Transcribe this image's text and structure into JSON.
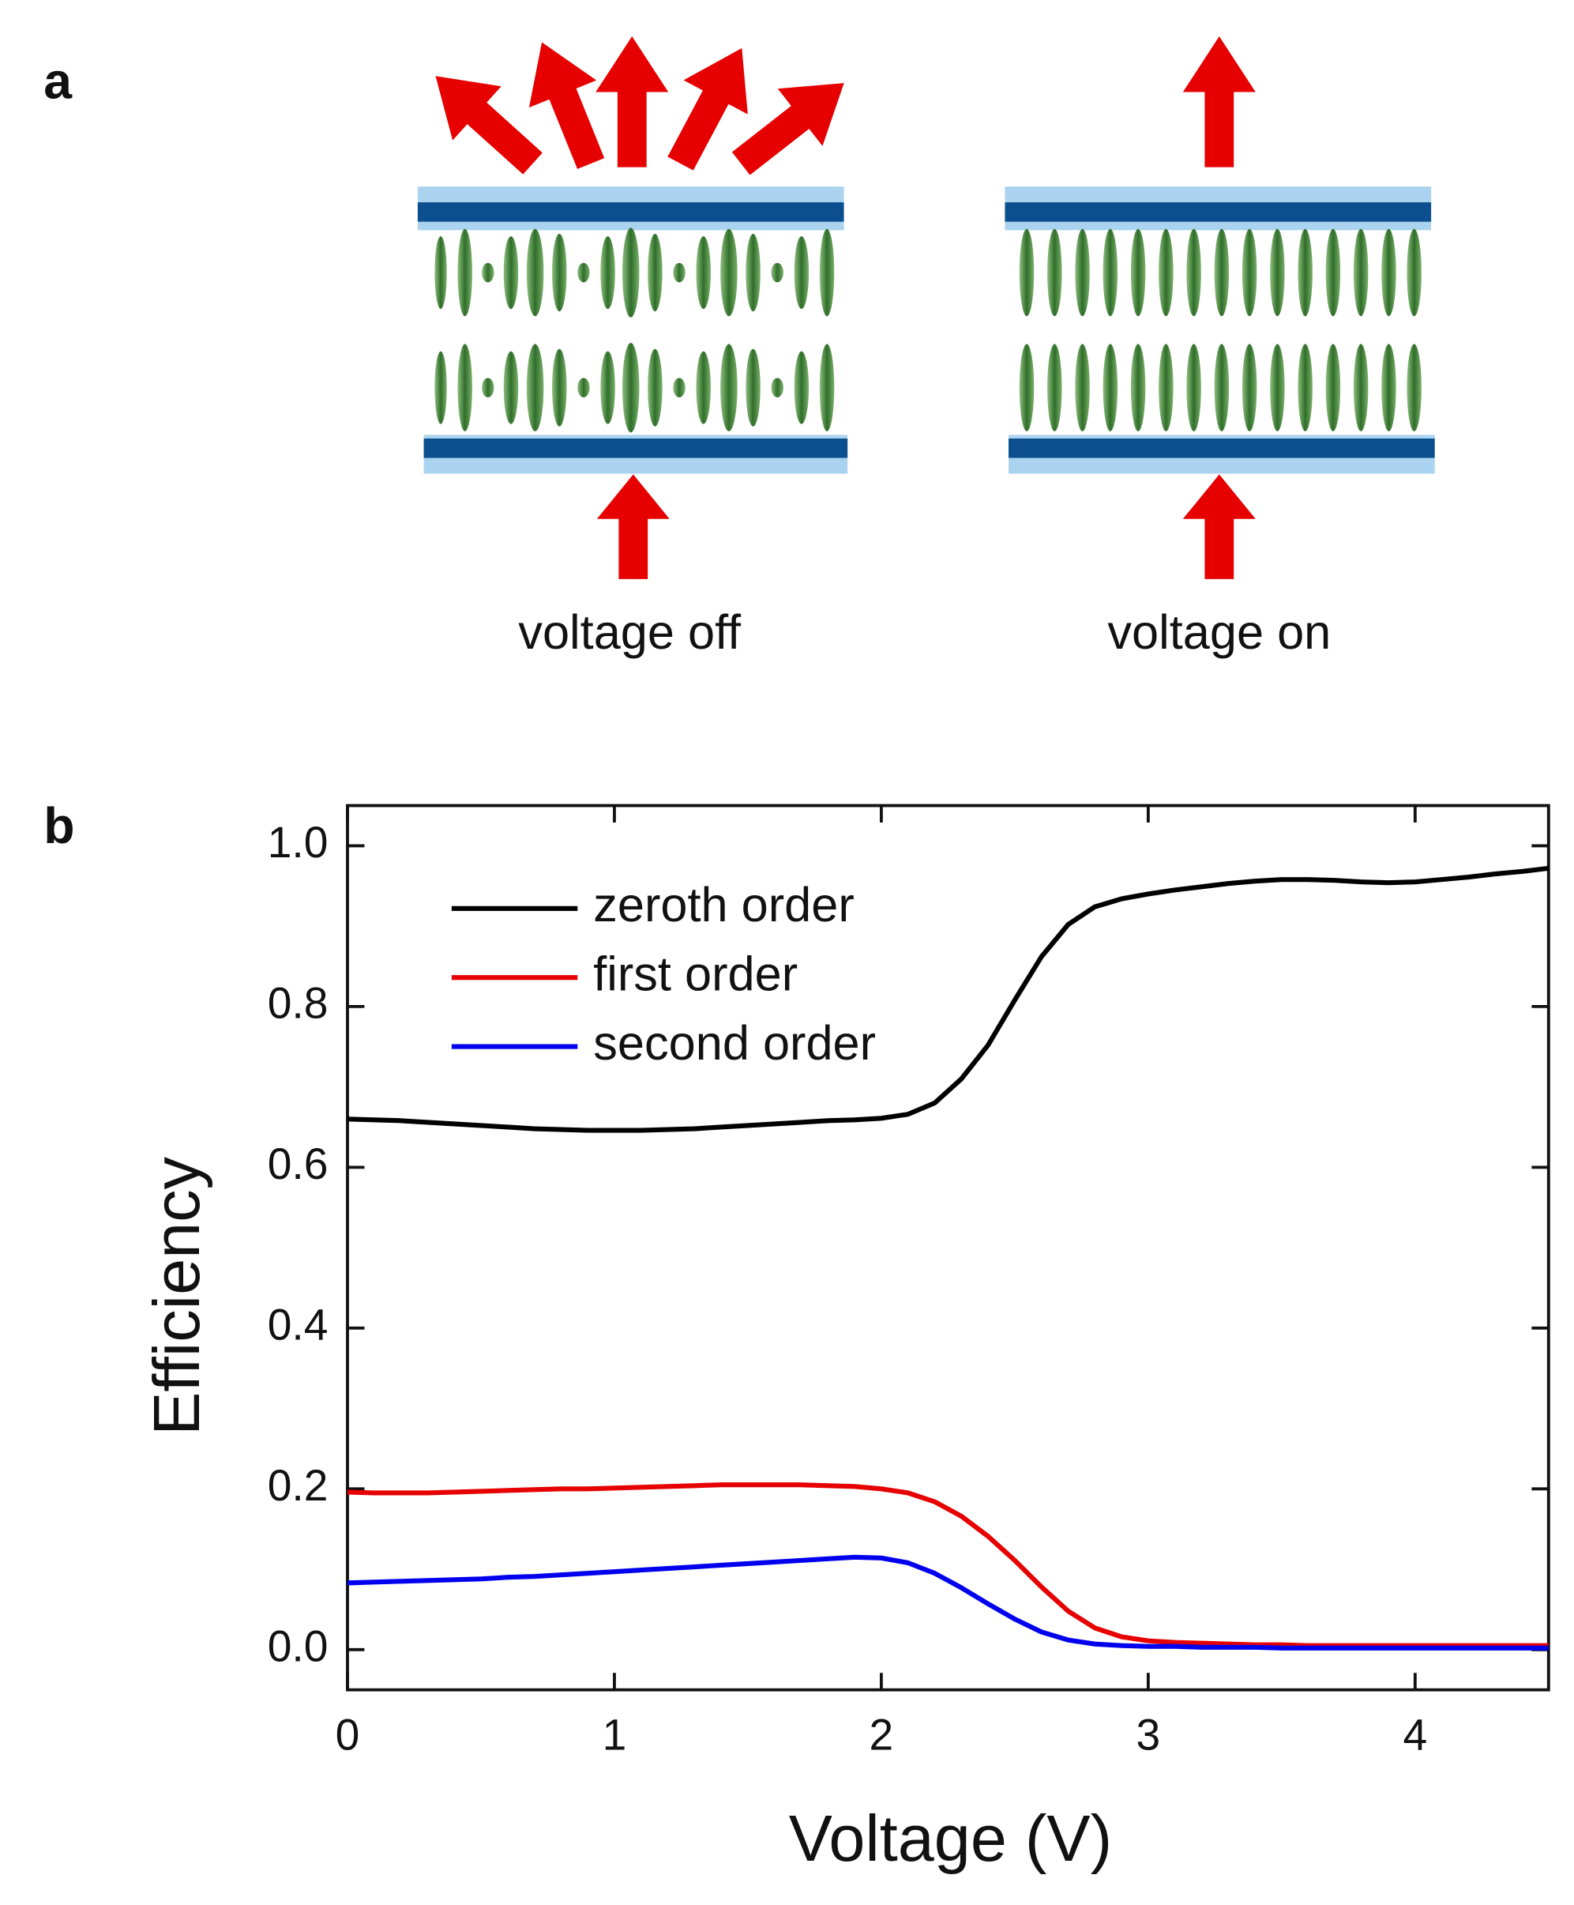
{
  "figure": {
    "panel_a_label": "a",
    "captions": [
      "voltage off",
      "voltage on"
    ],
    "panel_b_label": "b"
  },
  "chart_data": {
    "type": "line",
    "x_label": "Voltage (V)",
    "y_label": "Efficiency",
    "x": [
      0.0,
      0.1,
      0.2,
      0.3,
      0.4,
      0.5,
      0.6,
      0.7,
      0.8,
      0.9,
      1.0,
      1.1,
      1.2,
      1.3,
      1.4,
      1.5,
      1.6,
      1.7,
      1.8,
      1.9,
      2.0,
      2.1,
      2.2,
      2.3,
      2.4,
      2.5,
      2.6,
      2.7,
      2.8,
      2.9,
      3.0,
      3.1,
      3.2,
      3.3,
      3.4,
      3.5,
      3.6,
      3.7,
      3.8,
      3.9,
      4.0,
      4.1,
      4.2,
      4.3,
      4.4,
      4.5
    ],
    "series": [
      {
        "name": "zeroth order",
        "color": "#000000",
        "values": [
          0.66,
          0.659,
          0.658,
          0.656,
          0.654,
          0.652,
          0.65,
          0.648,
          0.647,
          0.646,
          0.646,
          0.646,
          0.647,
          0.648,
          0.65,
          0.652,
          0.654,
          0.656,
          0.658,
          0.659,
          0.661,
          0.666,
          0.68,
          0.71,
          0.752,
          0.808,
          0.862,
          0.902,
          0.924,
          0.934,
          0.94,
          0.945,
          0.949,
          0.953,
          0.956,
          0.958,
          0.958,
          0.957,
          0.955,
          0.954,
          0.955,
          0.958,
          0.961,
          0.965,
          0.968,
          0.972
        ]
      },
      {
        "name": "first order",
        "color": "#e60000",
        "values": [
          0.196,
          0.195,
          0.195,
          0.195,
          0.196,
          0.197,
          0.198,
          0.199,
          0.2,
          0.2,
          0.201,
          0.202,
          0.203,
          0.204,
          0.205,
          0.205,
          0.205,
          0.205,
          0.204,
          0.203,
          0.2,
          0.195,
          0.184,
          0.166,
          0.141,
          0.111,
          0.078,
          0.048,
          0.027,
          0.016,
          0.011,
          0.009,
          0.008,
          0.007,
          0.006,
          0.006,
          0.005,
          0.005,
          0.005,
          0.005,
          0.005,
          0.005,
          0.005,
          0.005,
          0.005,
          0.005
        ]
      },
      {
        "name": "second order",
        "color": "#0000ee",
        "values": [
          0.083,
          0.084,
          0.085,
          0.086,
          0.087,
          0.088,
          0.09,
          0.091,
          0.093,
          0.095,
          0.097,
          0.099,
          0.101,
          0.103,
          0.105,
          0.107,
          0.109,
          0.111,
          0.113,
          0.115,
          0.114,
          0.108,
          0.095,
          0.077,
          0.057,
          0.038,
          0.022,
          0.012,
          0.007,
          0.005,
          0.004,
          0.004,
          0.003,
          0.003,
          0.003,
          0.002,
          0.002,
          0.002,
          0.002,
          0.002,
          0.002,
          0.002,
          0.002,
          0.002,
          0.002,
          0.002
        ]
      }
    ],
    "xlim": [
      0,
      4.5
    ],
    "xticks": [
      0,
      1,
      2,
      3,
      4
    ],
    "ylim": [
      -0.05,
      1.05
    ],
    "yticks": [
      {
        "value": 0,
        "label": "0.0"
      },
      {
        "value": 0.2,
        "label": "0.2"
      },
      {
        "value": 0.4,
        "label": "0.4"
      },
      {
        "value": 0.6,
        "label": "0.6"
      },
      {
        "value": 0.8,
        "label": "0.8"
      },
      {
        "value": 1,
        "label": "1.0"
      }
    ],
    "legend": "upper left"
  }
}
